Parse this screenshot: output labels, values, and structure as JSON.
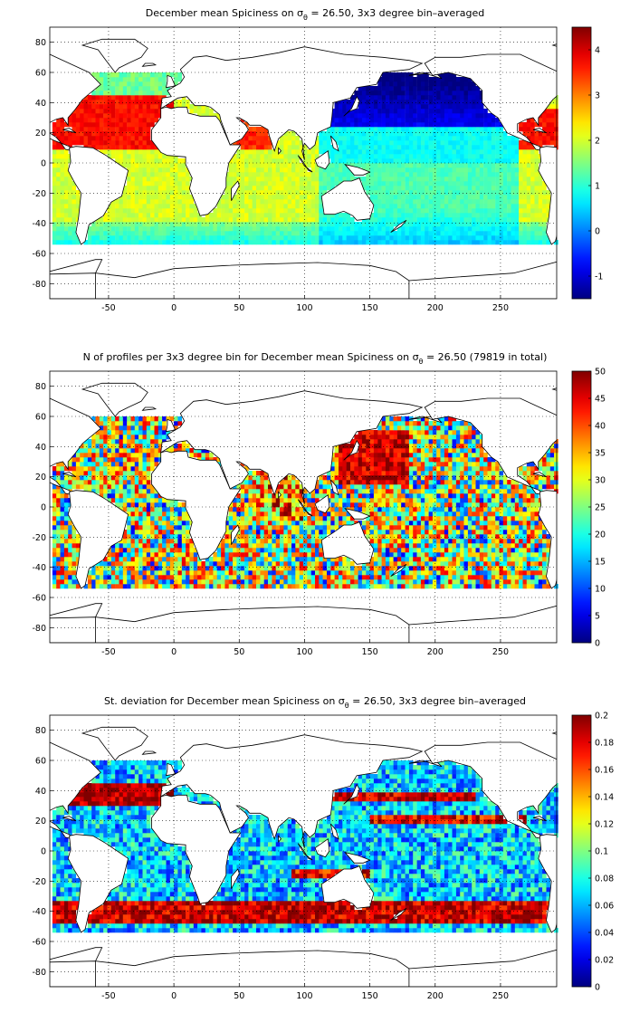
{
  "chart_data": [
    {
      "type": "heatmap",
      "title": "December mean Spiciness on σθ = 26.50, 3x3 degree bin–averaged",
      "title_prefix": "December mean Spiciness on σ",
      "title_sub": "θ",
      "title_suffix": " = 26.50, 3x3 degree bin–averaged",
      "x_ticks": [
        "-50",
        "0",
        "50",
        "100",
        "150",
        "200",
        "250"
      ],
      "y_ticks": [
        "80",
        "60",
        "40",
        "20",
        "0",
        "-20",
        "-40",
        "-60",
        "-80"
      ],
      "xlim": [
        -95,
        293
      ],
      "ylim": [
        -90,
        90
      ],
      "grid": true,
      "colormap": "jet",
      "colorbar": {
        "min": -1.5,
        "max": 4.5,
        "ticks": [
          "4",
          "3",
          "2",
          "1",
          "0",
          "-1"
        ],
        "tick_values": [
          4,
          3,
          2,
          1,
          0,
          -1
        ]
      },
      "field": "spiciness"
    },
    {
      "type": "heatmap",
      "title": "N of profiles per 3x3 degree bin for December mean Spiciness on σθ = 26.50 (79819 in total)",
      "title_prefix": "N of profiles per 3x3 degree bin for December mean Spiciness on σ",
      "title_sub": "θ",
      "title_suffix": " = 26.50 (79819 in total)",
      "x_ticks": [
        "-50",
        "0",
        "50",
        "100",
        "150",
        "200",
        "250"
      ],
      "y_ticks": [
        "80",
        "60",
        "40",
        "20",
        "0",
        "-20",
        "-40",
        "-60",
        "-80"
      ],
      "xlim": [
        -95,
        293
      ],
      "ylim": [
        -90,
        90
      ],
      "grid": true,
      "colormap": "jet",
      "colorbar": {
        "min": 0,
        "max": 50,
        "ticks": [
          "50",
          "45",
          "40",
          "35",
          "30",
          "25",
          "20",
          "15",
          "10",
          "5",
          "0"
        ],
        "tick_values": [
          50,
          45,
          40,
          35,
          30,
          25,
          20,
          15,
          10,
          5,
          0
        ]
      },
      "field": "count"
    },
    {
      "type": "heatmap",
      "title": "St. deviation for December mean Spiciness on σθ = 26.50, 3x3 degree bin–averaged",
      "title_prefix": "St. deviation for December mean Spiciness on σ",
      "title_sub": "θ",
      "title_suffix": " = 26.50, 3x3 degree bin–averaged",
      "x_ticks": [
        "-50",
        "0",
        "50",
        "100",
        "150",
        "200",
        "250"
      ],
      "y_ticks": [
        "80",
        "60",
        "40",
        "20",
        "0",
        "-20",
        "-40",
        "-60",
        "-80"
      ],
      "xlim": [
        -95,
        293
      ],
      "ylim": [
        -90,
        90
      ],
      "grid": true,
      "colormap": "jet",
      "colorbar": {
        "min": 0,
        "max": 0.2,
        "ticks": [
          "0.2",
          "0.18",
          "0.16",
          "0.14",
          "0.12",
          "0.1",
          "0.08",
          "0.06",
          "0.04",
          "0.02",
          "0"
        ],
        "tick_values": [
          0.2,
          0.18,
          0.16,
          0.14,
          0.12,
          0.1,
          0.08,
          0.06,
          0.04,
          0.02,
          0
        ]
      },
      "field": "std"
    }
  ]
}
